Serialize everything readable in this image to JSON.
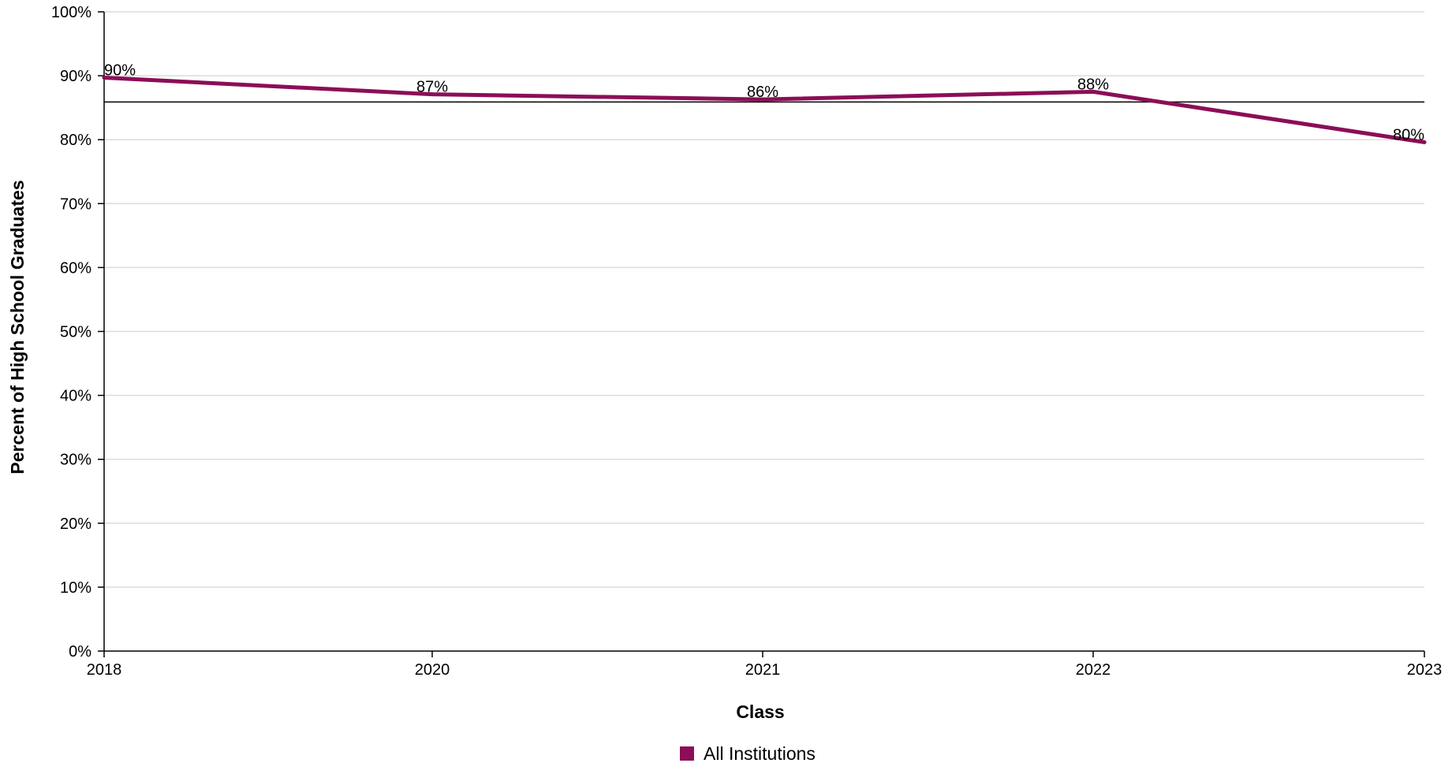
{
  "chart_data": {
    "type": "line",
    "title": "",
    "xlabel": "Class",
    "ylabel": "Percent of High School Graduates",
    "categories": [
      "2018",
      "2020",
      "2021",
      "2022",
      "2023"
    ],
    "series": [
      {
        "name": "All Institutions",
        "color": "#8b0e57",
        "values": [
          89.7,
          87.1,
          86.3,
          87.5,
          79.6
        ],
        "labels": [
          "90%",
          "87%",
          "86%",
          "88%",
          "80%"
        ]
      }
    ],
    "reference_line": 85.9,
    "ylim": [
      0,
      100
    ],
    "yticks": [
      0,
      10,
      20,
      30,
      40,
      50,
      60,
      70,
      80,
      90,
      100
    ],
    "ytick_labels": [
      "0%",
      "10%",
      "20%",
      "30%",
      "40%",
      "50%",
      "60%",
      "70%",
      "80%",
      "90%",
      "100%"
    ],
    "grid": true,
    "legend_position": "bottom-center"
  }
}
